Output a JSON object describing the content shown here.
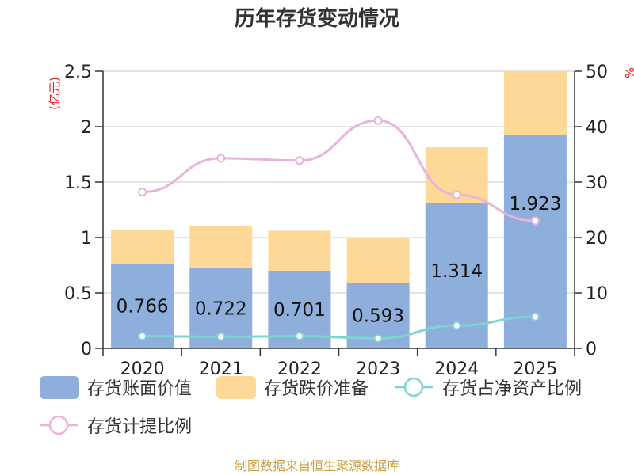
{
  "chart_data": {
    "type": "bar",
    "title": "历年存货变动情况",
    "categories": [
      "2020",
      "2021",
      "2022",
      "2023",
      "2024",
      "2025"
    ],
    "left_axis": {
      "unit": "(亿元)",
      "ylim": [
        0,
        2.5
      ],
      "ticks": [
        "0",
        "0.5",
        "1",
        "1.5",
        "2",
        "2.5"
      ]
    },
    "right_axis": {
      "unit": "%",
      "ylim": [
        0,
        50
      ],
      "ticks": [
        "0",
        "10",
        "20",
        "30",
        "40",
        "50"
      ]
    },
    "series": [
      {
        "name": "存货账面价值",
        "type": "bar",
        "stack": "total",
        "axis": "left",
        "color": "#8eaedb",
        "values": [
          0.766,
          0.722,
          0.701,
          0.593,
          1.314,
          1.923
        ],
        "labels": [
          "0.766",
          "0.722",
          "0.701",
          "0.593",
          "1.314",
          "1.923"
        ]
      },
      {
        "name": "存货跌价准备",
        "type": "bar",
        "stack": "total",
        "axis": "left",
        "color": "#fdd896",
        "values": [
          0.3,
          0.38,
          0.36,
          0.41,
          0.5,
          0.58
        ]
      },
      {
        "name": "存货占净资产比例",
        "type": "line",
        "axis": "right",
        "color": "#7fd3d3",
        "values": [
          2.2,
          2.1,
          2.2,
          1.8,
          4.1,
          5.7
        ]
      },
      {
        "name": "存货计提比例",
        "type": "line",
        "axis": "right",
        "color": "#e8b4da",
        "values": [
          28.2,
          34.3,
          33.9,
          41.1,
          27.7,
          23.0
        ]
      }
    ],
    "grid": true,
    "legend_position": "bottom"
  },
  "footer": {
    "source": "制图数据来自恒生聚源数据库"
  }
}
